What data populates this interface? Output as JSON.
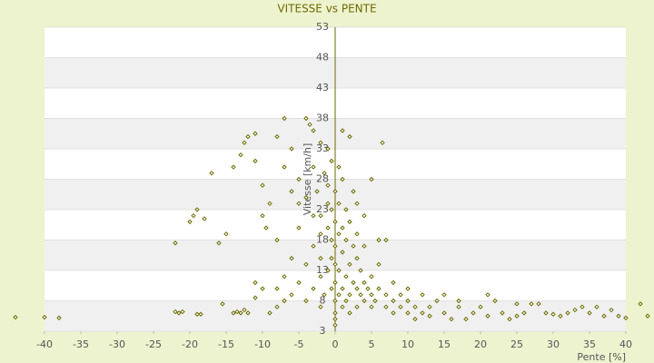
{
  "chart_data": {
    "type": "scatter",
    "title": "VITESSE vs PENTE",
    "x_label": "Pente [%]",
    "y_label": "Vitesse [km/h]",
    "x": [
      -44,
      -40,
      -38,
      -22,
      -21.5,
      -21,
      -19,
      -18.5,
      -15.5,
      -14,
      -13.5,
      -13,
      -12.5,
      -12,
      -11,
      -11,
      -10,
      -9,
      -8,
      -7,
      -22,
      -20,
      -19.5,
      -19,
      -18,
      -17,
      -16,
      -15,
      -14,
      -13,
      -12.5,
      -12,
      -11,
      -11,
      -10,
      -10,
      -9.5,
      -9,
      -8,
      -8,
      -7,
      -7,
      -6,
      -6,
      -5,
      -5,
      -4,
      -3.5,
      -3,
      -3,
      -2.5,
      -2,
      -2,
      -1.5,
      -1,
      -1,
      -0.5,
      -0.5,
      -8,
      -7,
      -6,
      -6,
      -5,
      -5,
      -4,
      -4,
      -4,
      -3,
      -3,
      -3,
      -2,
      -2,
      -2,
      -2,
      -1.5,
      -1,
      -1,
      -1,
      -0.5,
      -0.5,
      -0.5,
      0,
      0,
      0,
      0,
      0,
      0,
      0,
      0,
      0,
      0.5,
      0.5,
      0.5,
      0.5,
      0.5,
      1,
      1,
      1,
      1,
      1,
      1,
      1.5,
      1.5,
      1.5,
      1.5,
      2,
      2,
      2,
      2,
      2,
      2.5,
      2.5,
      2.5,
      3,
      3,
      3,
      3,
      3,
      3.5,
      3.5,
      4,
      4,
      4,
      4,
      4.5,
      5,
      5,
      5,
      5,
      5.5,
      6,
      6,
      6,
      6.5,
      7,
      7,
      7,
      8,
      8,
      8,
      9,
      9,
      10,
      10,
      10,
      11,
      11,
      12,
      12,
      13,
      13,
      14,
      15,
      15,
      16,
      17,
      17,
      18,
      19,
      20,
      21,
      21,
      22,
      23,
      24,
      25,
      25,
      26,
      27,
      28,
      29,
      30,
      31,
      32,
      33,
      34,
      35,
      36,
      37,
      38,
      39,
      40,
      42,
      43
    ],
    "y": [
      5.3,
      5.3,
      5.2,
      6.2,
      6,
      6.2,
      5.8,
      5.8,
      7.5,
      6,
      6.2,
      6,
      6.5,
      6,
      8.5,
      11,
      10,
      6,
      7,
      8,
      17.5,
      21,
      22,
      23,
      21.5,
      29,
      17.5,
      19,
      30,
      32,
      34,
      35,
      35.5,
      31,
      27,
      22,
      20,
      24,
      35,
      18,
      38,
      30,
      33,
      26,
      24,
      28,
      38,
      37,
      36,
      30,
      26,
      34,
      22,
      29,
      27,
      20,
      31,
      18,
      10,
      12,
      9,
      15,
      11,
      20,
      8,
      14,
      25,
      10,
      17,
      22,
      7,
      12,
      15,
      19,
      9,
      13,
      24,
      33,
      10,
      15,
      23,
      4,
      5,
      6,
      8,
      11,
      14,
      17,
      21,
      26,
      9,
      13,
      19,
      24,
      30,
      7,
      10,
      16,
      20,
      28,
      36,
      8,
      12,
      18,
      23,
      6,
      9,
      14,
      21,
      35,
      11,
      17,
      26,
      7,
      10,
      15,
      19,
      24,
      9,
      13,
      8,
      11,
      17,
      22,
      10,
      7,
      9,
      12,
      28,
      8,
      10,
      14,
      18,
      34,
      7,
      9,
      18,
      6,
      8,
      11,
      7,
      9,
      6,
      8,
      10,
      5,
      7,
      6,
      9,
      5.5,
      7,
      8,
      6,
      9,
      5,
      7,
      8,
      5,
      6,
      7,
      5.5,
      9,
      8,
      6,
      5,
      7.5,
      5.5,
      6,
      7.5,
      7.5,
      6,
      5.8,
      5.5,
      6,
      6.5,
      7,
      6,
      7,
      5.5,
      6.5,
      5.5,
      5.2,
      7.5,
      5.5
    ],
    "color": "#6b6b00",
    "xlim": [
      -40,
      40
    ],
    "xticks": [
      -40,
      -35,
      -30,
      -25,
      -20,
      -15,
      -10,
      -5,
      0,
      5,
      10,
      15,
      20,
      25,
      30,
      35,
      40
    ],
    "ylim": [
      3,
      53
    ],
    "yticks": [
      3,
      8,
      13,
      18,
      23,
      28,
      33,
      38,
      43,
      48,
      53
    ]
  }
}
